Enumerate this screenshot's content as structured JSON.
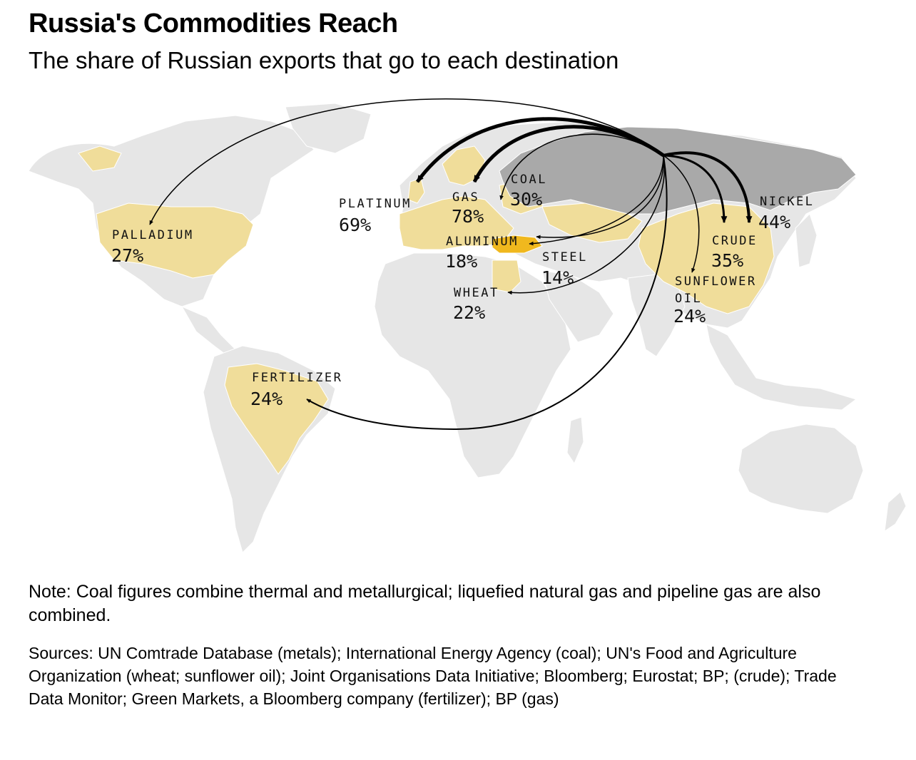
{
  "title": "Russia's Commodities Reach",
  "subtitle": "The share of Russian exports that go to each destination",
  "note": "Note: Coal figures combine thermal and metallurgical; liquefied natural gas and pipeline gas are also combined.",
  "sources": "Sources: UN Comtrade Database (metals); International Energy Agency (coal); UN's Food and Agriculture Organization (wheat; sunflower oil); Joint Organisations Data Initiative; Bloomberg; Eurostat; BP; (crude); Trade Data Monitor; Green Markets, a Bloomberg company (fertilizer); BP (gas)",
  "colors": {
    "land": "#e6e6e6",
    "destination": "#f0dd9a",
    "highlight_destination": "#f0b81e",
    "russia": "#a9a9a9",
    "arrow": "#000000"
  },
  "flows": [
    {
      "commodity": "PALLADIUM",
      "share": "27%",
      "value": 27
    },
    {
      "commodity": "PLATINUM",
      "share": "69%",
      "value": 69
    },
    {
      "commodity": "GAS",
      "share": "78%",
      "value": 78
    },
    {
      "commodity": "COAL",
      "share": "30%",
      "value": 30
    },
    {
      "commodity": "ALUMINUM",
      "share": "18%",
      "value": 18
    },
    {
      "commodity": "STEEL",
      "share": "14%",
      "value": 14
    },
    {
      "commodity": "WHEAT",
      "share": "22%",
      "value": 22
    },
    {
      "commodity": "NICKEL",
      "share": "44%",
      "value": 44
    },
    {
      "commodity": "CRUDE",
      "share": "35%",
      "value": 35
    },
    {
      "commodity": "SUNFLOWER OIL",
      "share": "24%",
      "value": 24
    },
    {
      "commodity": "FERTILIZER",
      "share": "24%",
      "value": 24
    }
  ]
}
